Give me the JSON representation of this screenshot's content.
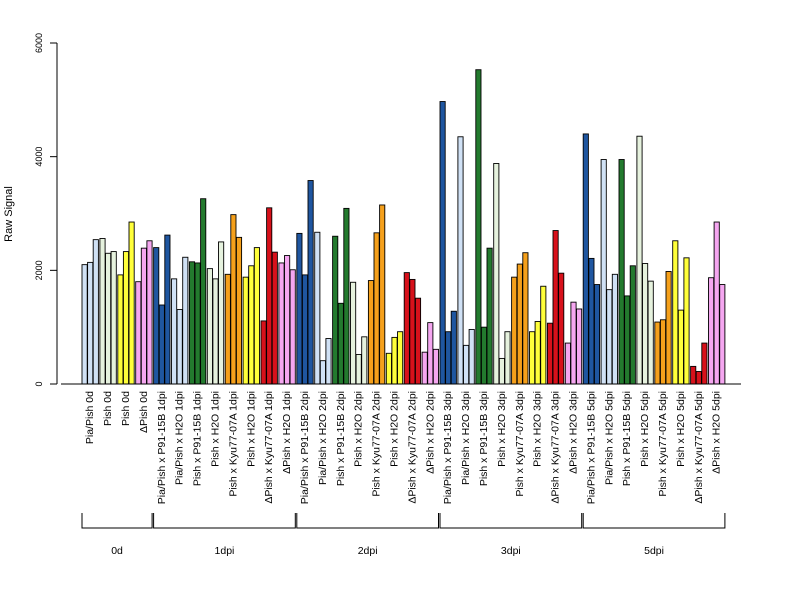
{
  "chart_data": {
    "type": "bar",
    "title": "",
    "xlabel": "",
    "ylabel": "Raw Signal",
    "ylim": [
      0,
      6000
    ],
    "yticks": [
      "0",
      "2000",
      "4000",
      "6000"
    ],
    "grid": false,
    "legend": "none",
    "categories": [
      {
        "label": "Pia/Pish 0d",
        "color": "#d0e1f5",
        "values": [
          2100,
          2140,
          2540
        ]
      },
      {
        "label": "Pish 0d",
        "color": "#e6f2de",
        "values": [
          2560,
          2300,
          2330
        ]
      },
      {
        "label": "Pish 0d",
        "color": "#ffff3a",
        "values": [
          1920,
          2330,
          2850
        ]
      },
      {
        "label": "ΔPish 0d",
        "color": "#f5a6f0",
        "values": [
          1800,
          2390,
          2520
        ]
      },
      {
        "label": "Pia/Pish x P91-15B 1dpi",
        "color": "#1f56a0",
        "values": [
          2400,
          1390,
          2620
        ]
      },
      {
        "label": "Pia/Pish x H2O 1dpi",
        "color": "#d0e1f5",
        "values": [
          1850,
          1310,
          2230
        ]
      },
      {
        "label": "Pish x P91-15B 1dpi",
        "color": "#237a2e",
        "values": [
          2150,
          2130,
          3260
        ]
      },
      {
        "label": "Pish x H2O 1dpi",
        "color": "#e6f2de",
        "values": [
          2030,
          1850,
          2500
        ]
      },
      {
        "label": "Pish x Kyu77-07A 1dpi",
        "color": "#f5a01b",
        "values": [
          1930,
          2980,
          2580
        ]
      },
      {
        "label": "Pish x H2O 1dpi",
        "color": "#ffff3a",
        "values": [
          1880,
          2080,
          2400
        ]
      },
      {
        "label": "ΔPish x Kyu77-07A 1dpi",
        "color": "#d7111b",
        "values": [
          1110,
          3100,
          2320
        ]
      },
      {
        "label": "ΔPish x H2O 1dpi",
        "color": "#f5a6f0",
        "values": [
          2130,
          2260,
          2010
        ]
      },
      {
        "label": "Pia/Pish x P91-15B 2dpi",
        "color": "#1f56a0",
        "values": [
          2650,
          1920,
          3580
        ]
      },
      {
        "label": "Pia/Pish x H2O 2dpi",
        "color": "#d0e1f5",
        "values": [
          2670,
          410,
          800
        ]
      },
      {
        "label": "Pish x P91-15B 2dpi",
        "color": "#237a2e",
        "values": [
          2600,
          1420,
          3090
        ]
      },
      {
        "label": "Pish x H2O 2dpi",
        "color": "#e6f2de",
        "values": [
          1790,
          520,
          830
        ]
      },
      {
        "label": "Pish x Kyu77-07A 2dpi",
        "color": "#f5a01b",
        "values": [
          1820,
          2660,
          3150
        ]
      },
      {
        "label": "Pish x H2O 2dpi",
        "color": "#ffff3a",
        "values": [
          540,
          820,
          920
        ]
      },
      {
        "label": "ΔPish x Kyu77-07A 2dpi",
        "color": "#d7111b",
        "values": [
          1960,
          1840,
          1510
        ]
      },
      {
        "label": "ΔPish x H2O 2dpi",
        "color": "#f5a6f0",
        "values": [
          560,
          1080,
          610
        ]
      },
      {
        "label": "Pia/Pish x P91-15B 3dpi",
        "color": "#1f56a0",
        "values": [
          4970,
          920,
          1280
        ]
      },
      {
        "label": "Pia/Pish x H2O 3dpi",
        "color": "#d0e1f5",
        "values": [
          4350,
          680,
          960
        ]
      },
      {
        "label": "Pish x P91-15B 3dpi",
        "color": "#237a2e",
        "values": [
          5530,
          1000,
          2390
        ]
      },
      {
        "label": "Pish x H2O 3dpi",
        "color": "#e6f2de",
        "values": [
          3880,
          450,
          920
        ]
      },
      {
        "label": "Pish x Kyu77-07A 3dpi",
        "color": "#f5a01b",
        "values": [
          1880,
          2110,
          2310
        ]
      },
      {
        "label": "Pish x H2O 3dpi",
        "color": "#ffff3a",
        "values": [
          920,
          1100,
          1720
        ]
      },
      {
        "label": "ΔPish x Kyu77-07A 3dpi",
        "color": "#d7111b",
        "values": [
          1070,
          2700,
          1950
        ]
      },
      {
        "label": "ΔPish x H2O 3dpi",
        "color": "#f5a6f0",
        "values": [
          720,
          1440,
          1320
        ]
      },
      {
        "label": "Pia/Pish x P91-15B 5dpi",
        "color": "#1f56a0",
        "values": [
          4400,
          2210,
          1750
        ]
      },
      {
        "label": "Pia/Pish x H2O 5dpi",
        "color": "#d0e1f5",
        "values": [
          3950,
          1660,
          1930
        ]
      },
      {
        "label": "Pish x P91-15B 5dpi",
        "color": "#237a2e",
        "values": [
          3950,
          1550,
          2080
        ]
      },
      {
        "label": "Pish x H2O 5dpi",
        "color": "#e6f2de",
        "values": [
          4360,
          2120,
          1810
        ]
      },
      {
        "label": "Pish x Kyu77-07A 5dpi",
        "color": "#f5a01b",
        "values": [
          1090,
          1130,
          1980
        ]
      },
      {
        "label": "Pish x H2O 5dpi",
        "color": "#ffff3a",
        "values": [
          2520,
          1300,
          2220
        ]
      },
      {
        "label": "ΔPish x Kyu77-07A 5dpi",
        "color": "#d7111b",
        "values": [
          310,
          220,
          720
        ]
      },
      {
        "label": "ΔPish x H2O 5dpi",
        "color": "#f5a6f0",
        "values": [
          1870,
          2850,
          1750
        ]
      }
    ],
    "groups": [
      {
        "label": "0d",
        "first": 0,
        "last": 3
      },
      {
        "label": "1dpi",
        "first": 4,
        "last": 11
      },
      {
        "label": "2dpi",
        "first": 12,
        "last": 19
      },
      {
        "label": "3dpi",
        "first": 20,
        "last": 27
      },
      {
        "label": "5dpi",
        "first": 28,
        "last": 35
      }
    ]
  }
}
